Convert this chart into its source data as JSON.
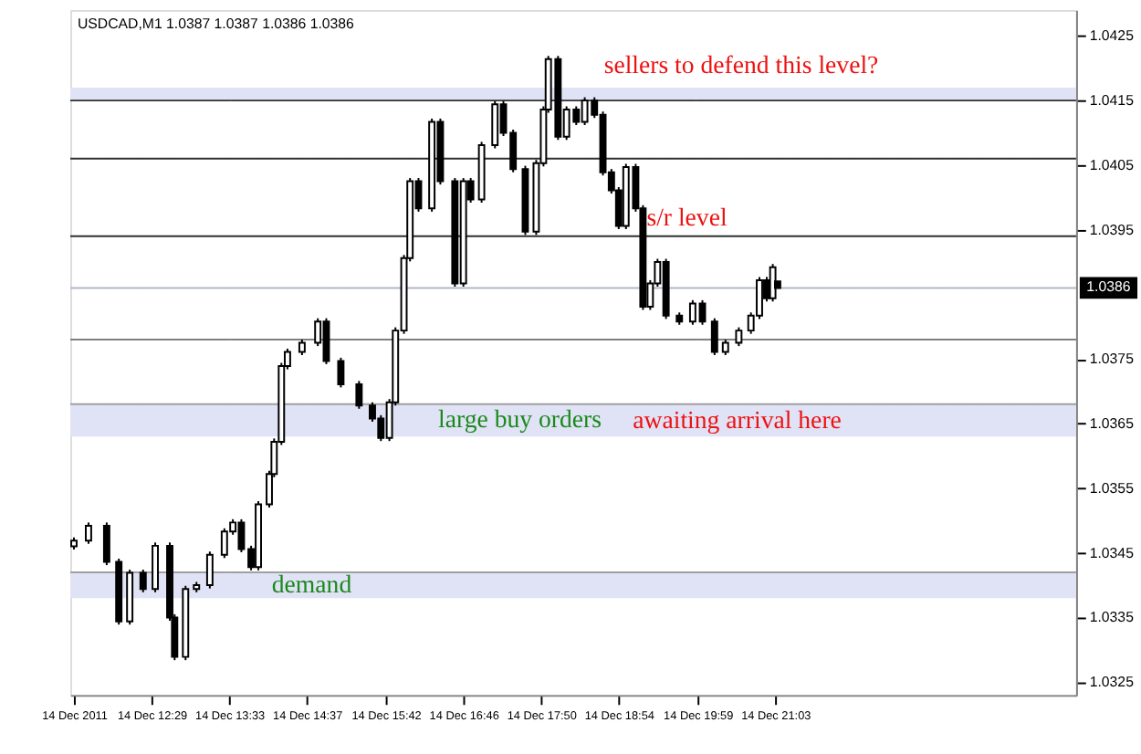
{
  "chart_data": {
    "type": "candlestick",
    "title": "USDCAD,M1  1.0387 1.0387 1.0386 1.0386",
    "color": "#000000",
    "x": [
      "2011-12-14T11:25",
      "2011-12-14T11:37",
      "2011-12-14T11:52",
      "2011-12-14T12:02",
      "2011-12-14T12:11",
      "2011-12-14T12:22",
      "2011-12-14T12:32",
      "2011-12-14T12:44",
      "2011-12-14T12:48",
      "2011-12-14T12:57",
      "2011-12-14T13:06",
      "2011-12-14T13:17",
      "2011-12-14T13:29",
      "2011-12-14T13:36",
      "2011-12-14T13:43",
      "2011-12-14T13:51",
      "2011-12-14T13:57",
      "2011-12-14T14:06",
      "2011-12-14T14:10",
      "2011-12-14T14:16",
      "2011-12-14T14:21",
      "2011-12-14T14:33",
      "2011-12-14T14:46",
      "2011-12-14T14:53",
      "2011-12-14T15:05",
      "2011-12-14T15:20",
      "2011-12-14T15:31",
      "2011-12-14T15:38",
      "2011-12-14T15:45",
      "2011-12-14T15:50",
      "2011-12-14T15:57",
      "2011-12-14T16:02",
      "2011-12-14T16:09",
      "2011-12-14T16:20",
      "2011-12-14T16:27",
      "2011-12-14T16:39",
      "2011-12-14T16:46",
      "2011-12-14T16:52",
      "2011-12-14T17:01",
      "2011-12-14T17:12",
      "2011-12-14T17:19",
      "2011-12-14T17:27",
      "2011-12-14T17:37",
      "2011-12-14T17:46",
      "2011-12-14T17:52",
      "2011-12-14T17:56",
      "2011-12-14T18:04",
      "2011-12-14T18:11",
      "2011-12-14T18:19",
      "2011-12-14T18:26",
      "2011-12-14T18:34",
      "2011-12-14T18:41",
      "2011-12-14T18:48",
      "2011-12-14T18:54",
      "2011-12-14T19:00",
      "2011-12-14T19:08",
      "2011-12-14T19:14",
      "2011-12-14T19:20",
      "2011-12-14T19:26",
      "2011-12-14T19:33",
      "2011-12-14T19:44",
      "2011-12-14T19:55",
      "2011-12-14T20:03",
      "2011-12-14T20:13",
      "2011-12-14T20:22",
      "2011-12-14T20:33",
      "2011-12-14T20:43",
      "2011-12-14T20:50",
      "2011-12-14T20:56",
      "2011-12-14T21:01",
      "2011-12-14T21:05"
    ],
    "ohlc": [
      [
        1.0346,
        1.03474,
        1.03455,
        1.03469
      ],
      [
        1.03469,
        1.03497,
        1.03464,
        1.03492
      ],
      [
        1.03492,
        1.03497,
        1.03431,
        1.03436
      ],
      [
        1.03436,
        1.03441,
        1.03339,
        1.03344
      ],
      [
        1.03344,
        1.03424,
        1.03339,
        1.03419
      ],
      [
        1.03419,
        1.03424,
        1.03389,
        1.03394
      ],
      [
        1.03394,
        1.03466,
        1.03389,
        1.03461
      ],
      [
        1.03461,
        1.03466,
        1.03345,
        1.0335
      ],
      [
        1.0335,
        1.03355,
        1.03284,
        1.03289
      ],
      [
        1.03289,
        1.03399,
        1.03284,
        1.03394
      ],
      [
        1.03394,
        1.03405,
        1.03389,
        1.034
      ],
      [
        1.034,
        1.03452,
        1.03395,
        1.03447
      ],
      [
        1.03447,
        1.03488,
        1.03442,
        1.03483
      ],
      [
        1.03483,
        1.03502,
        1.03478,
        1.03497
      ],
      [
        1.03497,
        1.03502,
        1.03451,
        1.03456
      ],
      [
        1.03456,
        1.03461,
        1.03423,
        1.03428
      ],
      [
        1.03428,
        1.0353,
        1.03423,
        1.03525
      ],
      [
        1.03525,
        1.03577,
        1.0352,
        1.03572
      ],
      [
        1.03572,
        1.03627,
        1.03567,
        1.03622
      ],
      [
        1.03622,
        1.03744,
        1.03617,
        1.03739
      ],
      [
        1.03739,
        1.03766,
        1.03734,
        1.03761
      ],
      [
        1.03761,
        1.0378,
        1.03756,
        1.03775
      ],
      [
        1.03775,
        1.03813,
        1.0377,
        1.03808
      ],
      [
        1.03808,
        1.03813,
        1.03742,
        1.03747
      ],
      [
        1.03747,
        1.03752,
        1.03706,
        1.03711
      ],
      [
        1.03711,
        1.03716,
        1.03673,
        1.03678
      ],
      [
        1.03678,
        1.03683,
        1.03653,
        1.03658
      ],
      [
        1.03658,
        1.03663,
        1.03623,
        1.03628
      ],
      [
        1.03628,
        1.03688,
        1.03623,
        1.03683
      ],
      [
        1.03683,
        1.03799,
        1.03678,
        1.03794
      ],
      [
        1.03794,
        1.03911,
        1.03789,
        1.03906
      ],
      [
        1.03906,
        1.0403,
        1.03901,
        1.04025
      ],
      [
        1.04025,
        1.0403,
        1.03978,
        1.03983
      ],
      [
        1.03983,
        1.04122,
        1.03978,
        1.04117
      ],
      [
        1.04117,
        1.04122,
        1.0402,
        1.04025
      ],
      [
        1.04025,
        1.0403,
        1.03862,
        1.03867
      ],
      [
        1.03867,
        1.0403,
        1.03862,
        1.04025
      ],
      [
        1.04025,
        1.0403,
        1.03992,
        1.03997
      ],
      [
        1.03997,
        1.04086,
        1.03992,
        1.04081
      ],
      [
        1.04081,
        1.04149,
        1.04076,
        1.04144
      ],
      [
        1.04144,
        1.04149,
        1.04095,
        1.041
      ],
      [
        1.041,
        1.04105,
        1.04039,
        1.04044
      ],
      [
        1.04044,
        1.04049,
        1.03942,
        1.03947
      ],
      [
        1.03947,
        1.04058,
        1.03942,
        1.04053
      ],
      [
        1.04053,
        1.04141,
        1.04048,
        1.04136
      ],
      [
        1.04136,
        1.04219,
        1.04131,
        1.04214
      ],
      [
        1.04214,
        1.04219,
        1.04089,
        1.04094
      ],
      [
        1.04094,
        1.04141,
        1.04089,
        1.04136
      ],
      [
        1.04136,
        1.04141,
        1.04112,
        1.04117
      ],
      [
        1.04117,
        1.04155,
        1.04112,
        1.0415
      ],
      [
        1.0415,
        1.04155,
        1.04123,
        1.04128
      ],
      [
        1.04128,
        1.04133,
        1.04034,
        1.04039
      ],
      [
        1.04039,
        1.04044,
        1.04006,
        1.04011
      ],
      [
        1.04011,
        1.04016,
        1.03951,
        1.03956
      ],
      [
        1.03956,
        1.04052,
        1.03951,
        1.04047
      ],
      [
        1.04047,
        1.04052,
        1.03978,
        1.03983
      ],
      [
        1.03983,
        1.03988,
        1.03826,
        1.03831
      ],
      [
        1.03831,
        1.03872,
        1.03826,
        1.03867
      ],
      [
        1.03867,
        1.03905,
        1.03862,
        1.039
      ],
      [
        1.039,
        1.03905,
        1.03812,
        1.03817
      ],
      [
        1.03817,
        1.03822,
        1.03803,
        1.03808
      ],
      [
        1.03808,
        1.03841,
        1.03803,
        1.03836
      ],
      [
        1.03836,
        1.03841,
        1.03803,
        1.03808
      ],
      [
        1.03808,
        1.03813,
        1.03756,
        1.03761
      ],
      [
        1.03761,
        1.0378,
        1.03756,
        1.03775
      ],
      [
        1.03775,
        1.03799,
        1.0377,
        1.03794
      ],
      [
        1.03794,
        1.03822,
        1.03789,
        1.03817
      ],
      [
        1.03817,
        1.03877,
        1.03812,
        1.03872
      ],
      [
        1.03872,
        1.03877,
        1.03839,
        1.03844
      ],
      [
        1.03844,
        1.03897,
        1.03839,
        1.03892
      ],
      [
        1.0387,
        1.0387,
        1.0386,
        1.0386
      ]
    ],
    "xlim": [
      "2011-12-14T11:22",
      "2011-12-15T01:11"
    ],
    "xticks": [
      {
        "value": "2011-12-14T11:25",
        "label": "14 Dec 2011"
      },
      {
        "value": "2011-12-14T12:29",
        "label": "14 Dec 12:29"
      },
      {
        "value": "2011-12-14T13:33",
        "label": "14 Dec 13:33"
      },
      {
        "value": "2011-12-14T14:37",
        "label": "14 Dec 14:37"
      },
      {
        "value": "2011-12-14T15:42",
        "label": "14 Dec 15:42"
      },
      {
        "value": "2011-12-14T16:46",
        "label": "14 Dec 16:46"
      },
      {
        "value": "2011-12-14T17:50",
        "label": "14 Dec 17:50"
      },
      {
        "value": "2011-12-14T18:54",
        "label": "14 Dec 18:54"
      },
      {
        "value": "2011-12-14T19:59",
        "label": "14 Dec 19:59"
      },
      {
        "value": "2011-12-14T21:03",
        "label": "14 Dec 21:03"
      }
    ],
    "ylim": [
      1.0323,
      1.0429
    ],
    "yticks": [
      1.0325,
      1.0335,
      1.0345,
      1.0355,
      1.0365,
      1.0375,
      1.0395,
      1.0405,
      1.0415,
      1.0425
    ],
    "grid": false,
    "bands": [
      {
        "axis": "y",
        "from": 1.0415,
        "to": 1.0417,
        "color": "#e0e2f6",
        "label": "sellers to defend this level?"
      },
      {
        "axis": "y",
        "from": 1.0363,
        "to": 1.0368,
        "color": "#e0e2f6",
        "label": "large buy orders"
      },
      {
        "axis": "y",
        "from": 1.0338,
        "to": 1.0342,
        "color": "#e0e2f6",
        "label": "demand"
      }
    ],
    "ref_lines": [
      {
        "axis": "y",
        "value": 1.0415,
        "label": null,
        "color": "#303030"
      },
      {
        "axis": "y",
        "value": 1.0406,
        "label": null,
        "color": "#303030"
      },
      {
        "axis": "y",
        "value": 1.0394,
        "label": "s/r level",
        "color": "#303030"
      },
      {
        "axis": "y",
        "value": 1.0378,
        "label": null,
        "color": "#808080"
      },
      {
        "axis": "y",
        "value": 1.0368,
        "label": "awaiting arrival here",
        "color": "#a0a0a0"
      },
      {
        "axis": "y",
        "value": 1.0342,
        "label": null,
        "color": "#a0a0a0"
      },
      {
        "axis": "y",
        "value": 1.0386,
        "label": "1.0386",
        "color": "#b0b8d0"
      }
    ]
  }
}
